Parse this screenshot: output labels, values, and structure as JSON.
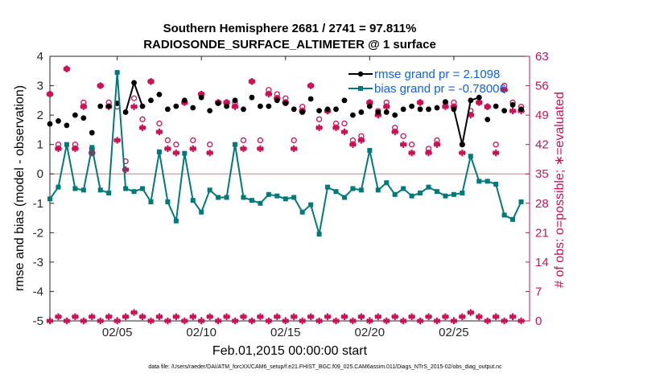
{
  "chart_data": {
    "type": "line",
    "title": "Southern Hemisphere 2681 / 2741 = 97.811%",
    "subtitle": "RADIOSONDE_SURFACE_ALTIMETER @ 1 surface",
    "xlabel": "Feb.01,2015 00:00:00 start",
    "ylabel": "rmse and bias (model - observation)",
    "ylabel_right": "# of obs: o=possible; ∗=evaluated",
    "xlim": [
      1,
      29.5
    ],
    "ylim": [
      -5,
      4
    ],
    "ylim_right": [
      0,
      63
    ],
    "x_ticks": [
      5,
      10,
      15,
      20,
      25
    ],
    "x_tick_labels": [
      "02/05",
      "02/10",
      "02/15",
      "02/20",
      "02/25"
    ],
    "y_ticks": [
      -5,
      -4,
      -3,
      -2,
      -1,
      0,
      1,
      2,
      3,
      4
    ],
    "y_tick_labels": [
      "-5",
      "-4",
      "-3",
      "-2",
      "-1",
      "0",
      "1",
      "2",
      "3",
      "4"
    ],
    "y_right_ticks": [
      0,
      7,
      14,
      21,
      28,
      35,
      42,
      49,
      56,
      63
    ],
    "y_right_tick_labels": [
      "0",
      "7",
      "14",
      "21",
      "28",
      "35",
      "42",
      "49",
      "56",
      "63"
    ],
    "zero_line": 0,
    "footnote": "data file: /Users/raeder/DAI/ATM_forcXX/CAM6_setup/f.e21.FHIST_BGC.f09_025.CAM6assim.011/Diags_NTrS_2015-02/obs_diag_output.nc",
    "colors": {
      "rmse": "#000000",
      "bias": "#007a78",
      "count": "#cc1155",
      "zero": "#c8a0a0"
    },
    "series": [
      {
        "name": "rmse",
        "legend": "rmse grand pr = 2.1098",
        "x": [
          1.0,
          1.5,
          2.0,
          2.5,
          3.0,
          3.5,
          4.0,
          4.5,
          5.0,
          5.5,
          6.0,
          6.5,
          7.0,
          7.5,
          8.0,
          8.5,
          9.0,
          9.5,
          10.0,
          10.5,
          11.0,
          11.5,
          12.0,
          12.5,
          13.0,
          13.5,
          14.0,
          14.5,
          15.0,
          15.5,
          16.0,
          16.5,
          17.0,
          17.5,
          18.0,
          18.5,
          19.0,
          19.5,
          20.0,
          20.5,
          21.0,
          21.5,
          22.0,
          22.5,
          23.0,
          23.5,
          24.0,
          24.5,
          25.0,
          25.5,
          26.0,
          26.5,
          27.0,
          27.5,
          28.0,
          28.5,
          29.0
        ],
        "values": [
          1.7,
          1.8,
          1.65,
          2.0,
          1.9,
          1.4,
          2.3,
          2.3,
          2.4,
          2.1,
          3.1,
          2.3,
          2.5,
          2.7,
          2.2,
          2.3,
          2.5,
          2.25,
          2.6,
          2.15,
          2.4,
          2.3,
          2.5,
          2.2,
          2.6,
          2.3,
          2.3,
          2.5,
          2.4,
          2.2,
          2.1,
          2.55,
          2.15,
          2.2,
          2.2,
          2.5,
          2.0,
          2.1,
          2.3,
          2.1,
          2.1,
          2.0,
          2.2,
          2.3,
          2.2,
          2.2,
          2.25,
          2.45,
          2.2,
          1.0,
          2.5,
          2.6,
          1.85,
          2.3,
          2.15,
          2.35,
          2.2
        ]
      },
      {
        "name": "bias",
        "legend": "bias grand pr = -0.78006",
        "x": [
          1.0,
          1.5,
          2.0,
          2.5,
          3.0,
          3.5,
          4.0,
          4.5,
          5.0,
          5.5,
          6.0,
          6.5,
          7.0,
          7.5,
          8.0,
          8.5,
          9.0,
          9.5,
          10.0,
          10.5,
          11.0,
          11.5,
          12.0,
          12.5,
          13.0,
          13.5,
          14.0,
          14.5,
          15.0,
          15.5,
          16.0,
          16.5,
          17.0,
          17.5,
          18.0,
          18.5,
          19.0,
          19.5,
          20.0,
          20.5,
          21.0,
          21.5,
          22.0,
          22.5,
          23.0,
          23.5,
          24.0,
          24.5,
          25.0,
          25.5,
          26.0,
          26.5,
          27.0,
          27.5,
          28.0,
          28.5,
          29.0
        ],
        "values": [
          -0.85,
          -0.45,
          1.0,
          -0.5,
          -0.55,
          0.9,
          -0.55,
          -0.65,
          3.45,
          -0.5,
          -0.6,
          -0.5,
          -0.95,
          0.75,
          -0.95,
          -1.6,
          0.7,
          -0.9,
          -1.3,
          -0.55,
          -0.8,
          -0.8,
          1.0,
          -0.8,
          -0.9,
          -1.0,
          -0.7,
          -0.75,
          -0.85,
          -0.8,
          -1.3,
          -1.05,
          -2.05,
          -0.45,
          -0.6,
          -0.8,
          -0.5,
          -0.55,
          0.8,
          -0.55,
          -0.3,
          -0.7,
          -0.5,
          -0.75,
          -0.65,
          -0.45,
          -0.6,
          -0.75,
          -0.7,
          -0.65,
          0.6,
          -0.25,
          -0.25,
          -0.35,
          -1.4,
          -1.55,
          -0.95
        ]
      },
      {
        "name": "# of obs possible",
        "marker": "o",
        "x": [
          1.0,
          1.5,
          2.0,
          2.5,
          3.0,
          3.5,
          4.0,
          4.5,
          5.0,
          5.5,
          6.0,
          6.5,
          7.0,
          7.5,
          8.0,
          8.5,
          9.0,
          9.5,
          10.0,
          10.5,
          11.0,
          11.5,
          12.0,
          12.5,
          13.0,
          13.5,
          14.0,
          14.5,
          15.0,
          15.5,
          16.0,
          16.5,
          17.0,
          17.5,
          18.0,
          18.5,
          19.0,
          19.5,
          20.0,
          20.5,
          21.0,
          21.5,
          22.0,
          22.5,
          23.0,
          23.5,
          24.0,
          24.5,
          25.0,
          25.5,
          26.0,
          26.5,
          27.0,
          27.5,
          28.0,
          28.5,
          29.0
        ],
        "values": [
          54,
          42,
          60,
          42,
          52,
          41,
          56,
          52,
          51,
          38,
          53,
          48,
          57,
          47,
          43,
          42,
          52,
          43,
          54,
          42,
          52,
          52,
          52,
          43,
          57,
          43,
          55,
          54,
          53,
          43,
          51,
          56,
          48,
          50,
          47,
          47,
          43,
          44,
          52,
          50,
          52,
          46,
          44,
          42,
          52,
          41,
          43,
          52,
          52,
          42,
          50,
          52,
          51,
          42,
          56,
          52,
          51
        ]
      },
      {
        "name": "# of obs evaluated",
        "marker": "*",
        "x": [
          1.0,
          1.5,
          2.0,
          2.5,
          3.0,
          3.5,
          4.0,
          4.5,
          5.0,
          5.5,
          6.0,
          6.5,
          7.0,
          7.5,
          8.0,
          8.5,
          9.0,
          9.5,
          10.0,
          10.5,
          11.0,
          11.5,
          12.0,
          12.5,
          13.0,
          13.5,
          14.0,
          14.5,
          15.0,
          15.5,
          16.0,
          16.5,
          17.0,
          17.5,
          18.0,
          18.5,
          19.0,
          19.5,
          20.0,
          20.5,
          21.0,
          21.5,
          22.0,
          22.5,
          23.0,
          23.5,
          24.0,
          24.5,
          25.0,
          25.5,
          26.0,
          26.5,
          27.0,
          27.5,
          28.0,
          28.5,
          29.0
        ],
        "values": [
          54,
          41,
          60,
          41,
          51,
          40,
          56,
          51,
          43,
          36,
          51,
          46,
          57,
          45,
          41,
          40,
          52,
          41,
          54,
          40,
          52,
          52,
          51,
          41,
          57,
          41,
          54,
          53,
          52,
          41,
          50,
          56,
          46,
          50,
          46,
          45,
          42,
          43,
          52,
          49,
          51,
          45,
          42,
          40,
          52,
          40,
          42,
          51,
          51,
          40,
          49,
          52,
          51,
          40,
          55,
          50,
          50
        ]
      },
      {
        "name": "baseline markers",
        "x": [
          1.0,
          1.5,
          2.0,
          2.5,
          3.0,
          3.5,
          4.0,
          4.5,
          5.0,
          5.5,
          6.0,
          6.5,
          7.0,
          7.5,
          8.0,
          8.5,
          9.0,
          9.5,
          10.0,
          10.5,
          11.0,
          11.5,
          12.0,
          12.5,
          13.0,
          13.5,
          14.0,
          14.5,
          15.0,
          15.5,
          16.0,
          16.5,
          17.0,
          17.5,
          18.0,
          18.5,
          19.0,
          19.5,
          20.0,
          20.5,
          21.0,
          21.5,
          22.0,
          22.5,
          23.0,
          23.5,
          24.0,
          24.5,
          25.0,
          25.5,
          26.0,
          26.5,
          27.0,
          27.5,
          28.0,
          28.5,
          29.0
        ],
        "values": [
          0,
          1,
          0,
          1,
          0,
          1,
          0,
          1,
          0,
          1,
          2,
          1,
          0,
          1,
          0,
          1,
          0,
          1,
          0,
          1,
          0,
          1,
          0,
          1,
          0,
          1,
          0,
          1,
          0,
          1,
          0,
          1,
          0,
          1,
          0,
          1,
          0,
          1,
          0,
          1,
          0,
          1,
          0,
          1,
          0,
          1,
          0,
          1,
          0,
          1,
          2,
          1,
          0,
          1,
          0,
          1,
          0
        ]
      }
    ]
  }
}
